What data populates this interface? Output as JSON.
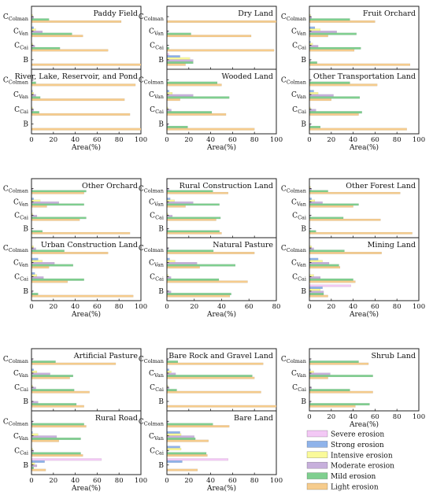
{
  "chart_data": {
    "type": "bar",
    "orientation": "horizontal",
    "categories": [
      "C_Colman",
      "C_Van",
      "C_Cai",
      "B"
    ],
    "category_labels": [
      {
        "main": "C",
        "sub": "Colman"
      },
      {
        "main": "C",
        "sub": "Van"
      },
      {
        "main": "C",
        "sub": "Cai"
      },
      {
        "main": "B",
        "sub": ""
      }
    ],
    "xlabel": "Area(%)",
    "legend": {
      "placement": "bottom-right",
      "entries": [
        {
          "name": "Severe erosion",
          "color": "#f3c8f5"
        },
        {
          "name": "Strong erosion",
          "color": "#8fb3ea"
        },
        {
          "name": "Intensive erosion",
          "color": "#fafa9a"
        },
        {
          "name": "Moderate erosion",
          "color": "#c7b0dc"
        },
        {
          "name": "Mild erosion",
          "color": "#7fcf8f"
        },
        {
          "name": "Light erosion",
          "color": "#f6cc8d"
        }
      ]
    },
    "series_order": [
      "Severe erosion",
      "Strong erosion",
      "Intensive erosion",
      "Moderate erosion",
      "Mild erosion",
      "Light erosion"
    ],
    "panels": [
      {
        "title": "Paddy Field",
        "xlim": [
          0,
          100
        ],
        "xticks": [
          0,
          20,
          40,
          60,
          80,
          100
        ],
        "values": {
          "C_Colman": [
            0,
            0,
            1,
            2,
            16,
            82
          ],
          "C_Van": [
            0,
            2,
            4,
            10,
            37,
            47
          ],
          "C_Cai": [
            0,
            0,
            1,
            3,
            26,
            70
          ],
          "B": [
            0,
            0,
            0,
            0,
            0,
            100
          ]
        }
      },
      {
        "title": "Dry Land",
        "xlim": [
          0,
          100
        ],
        "xticks": [
          0,
          20,
          40,
          60,
          80,
          100
        ],
        "values": {
          "C_Colman": [
            0,
            0,
            0,
            0,
            0,
            100
          ],
          "C_Van": [
            0,
            0,
            0,
            1,
            22,
            77
          ],
          "C_Cai": [
            0,
            0,
            0,
            0,
            2,
            98
          ],
          "B": [
            2,
            12,
            21,
            24,
            24,
            17
          ]
        }
      },
      {
        "title": "Fruit Orchard",
        "xlim": [
          0,
          100
        ],
        "xticks": [
          0,
          20,
          40,
          60,
          80,
          100
        ],
        "values": {
          "C_Colman": [
            0,
            0,
            1,
            2,
            37,
            60
          ],
          "C_Van": [
            0,
            5,
            10,
            25,
            43,
            17
          ],
          "C_Cai": [
            0,
            1,
            3,
            8,
            47,
            41
          ],
          "B": [
            0,
            0,
            0,
            1,
            7,
            92
          ]
        }
      },
      {
        "title": "River, Lake, Reservoir, and Pond",
        "xlim": [
          0,
          100
        ],
        "xticks": [
          0,
          20,
          40,
          60,
          80,
          100
        ],
        "values": {
          "C_Colman": [
            0,
            0,
            0,
            1,
            4,
            95
          ],
          "C_Van": [
            0,
            1,
            2,
            4,
            8,
            85
          ],
          "C_Cai": [
            0,
            0,
            1,
            2,
            7,
            90
          ],
          "B": [
            0,
            0,
            0,
            0,
            0,
            100
          ]
        }
      },
      {
        "title": "Wooded Land",
        "xlim": [
          0,
          100
        ],
        "xticks": [
          0,
          20,
          40,
          60,
          80,
          100
        ],
        "values": {
          "C_Colman": [
            0,
            0,
            0,
            0,
            46,
            50
          ],
          "C_Van": [
            0,
            2,
            5,
            24,
            57,
            12
          ],
          "C_Cai": [
            0,
            0,
            1,
            4,
            41,
            54
          ],
          "B": [
            0,
            0,
            0,
            1,
            19,
            80
          ]
        }
      },
      {
        "title": "Other Transportation Land",
        "xlim": [
          0,
          100
        ],
        "xticks": [
          0,
          20,
          40,
          60,
          80,
          100
        ],
        "values": {
          "C_Colman": [
            0,
            0,
            0,
            1,
            37,
            62
          ],
          "C_Van": [
            0,
            4,
            8,
            22,
            46,
            20
          ],
          "C_Cai": [
            0,
            0,
            1,
            6,
            48,
            45
          ],
          "B": [
            0,
            0,
            0,
            1,
            10,
            89
          ]
        }
      },
      {
        "title": "Other Orchard",
        "xlim": [
          0,
          100
        ],
        "xticks": [
          0,
          20,
          40,
          60,
          80,
          100
        ],
        "values": {
          "C_Colman": [
            0,
            0,
            0,
            1,
            50,
            48
          ],
          "C_Van": [
            0,
            2,
            8,
            25,
            48,
            14
          ],
          "C_Cai": [
            0,
            0,
            1,
            5,
            50,
            44
          ],
          "B": [
            0,
            0,
            0,
            0,
            10,
            90
          ]
        }
      },
      {
        "title": "Rural Construction Land",
        "xlim": [
          0,
          100
        ],
        "xticks": [
          0,
          20,
          40,
          60,
          80,
          100
        ],
        "values": {
          "C_Colman": [
            0,
            0,
            0,
            2,
            42,
            56
          ],
          "C_Van": [
            0,
            3,
            7,
            24,
            48,
            17
          ],
          "C_Cai": [
            0,
            0,
            1,
            5,
            49,
            45
          ],
          "B": [
            0,
            0,
            0,
            1,
            48,
            50
          ]
        }
      },
      {
        "title": "Other Forest Land",
        "xlim": [
          0,
          100
        ],
        "xticks": [
          0,
          20,
          40,
          60,
          80,
          100
        ],
        "values": {
          "C_Colman": [
            0,
            0,
            1,
            2,
            17,
            83
          ],
          "C_Van": [
            0,
            2,
            5,
            12,
            45,
            40
          ],
          "C_Cai": [
            0,
            0,
            0,
            1,
            31,
            65
          ],
          "B": [
            0,
            0,
            0,
            0,
            6,
            94
          ]
        }
      },
      {
        "title": "Urban Construction Land",
        "xlim": [
          0,
          100
        ],
        "xticks": [
          0,
          20,
          40,
          60,
          80,
          100
        ],
        "values": {
          "C_Colman": [
            0,
            0,
            2,
            4,
            30,
            70
          ],
          "C_Van": [
            0,
            6,
            10,
            21,
            38,
            16
          ],
          "C_Cai": [
            0,
            3,
            5,
            11,
            48,
            33
          ],
          "B": [
            0,
            0,
            0,
            1,
            6,
            93
          ]
        }
      },
      {
        "title": "Natural Pasture",
        "xlim": [
          0,
          80
        ],
        "xticks": [
          0,
          20,
          40,
          60,
          80
        ],
        "values": {
          "C_Colman": [
            0,
            0,
            0,
            1,
            34,
            64
          ],
          "C_Van": [
            0,
            2,
            6,
            22,
            50,
            24
          ],
          "C_Cai": [
            0,
            0,
            1,
            3,
            38,
            59
          ],
          "B": [
            0,
            0,
            0,
            3,
            47,
            46
          ]
        }
      },
      {
        "title": "Mining Land",
        "xlim": [
          0,
          100
        ],
        "xticks": [
          0,
          20,
          40,
          60,
          80,
          100
        ],
        "values": {
          "C_Colman": [
            0,
            0,
            2,
            4,
            32,
            66
          ],
          "C_Van": [
            0,
            8,
            12,
            18,
            27,
            28
          ],
          "C_Cai": [
            0,
            0,
            4,
            10,
            40,
            42
          ],
          "B": [
            38,
            12,
            10,
            13,
            13,
            17
          ]
        }
      },
      {
        "title": "Artificial Pasture",
        "xlim": [
          0,
          100
        ],
        "xticks": [
          0,
          20,
          40,
          60,
          80,
          100
        ],
        "values": {
          "C_Colman": [
            0,
            0,
            0,
            1,
            22,
            77
          ],
          "C_Van": [
            0,
            2,
            5,
            17,
            38,
            35
          ],
          "C_Cai": [
            0,
            0,
            1,
            4,
            39,
            53
          ],
          "B": [
            0,
            0,
            0,
            6,
            41,
            48
          ]
        }
      },
      {
        "title": "Bare Rock and Gravel Land",
        "xlim": [
          0,
          100
        ],
        "xticks": [
          0,
          20,
          40,
          60,
          80,
          100
        ],
        "values": {
          "C_Colman": [
            0,
            0,
            0,
            1,
            10,
            88
          ],
          "C_Van": [
            0,
            2,
            4,
            8,
            78,
            80
          ],
          "C_Cai": [
            0,
            0,
            1,
            2,
            9,
            86
          ],
          "B": [
            0,
            0,
            0,
            0,
            0,
            100
          ]
        }
      },
      {
        "title": "Shrub Land",
        "xlim": [
          0,
          100
        ],
        "xticks": [
          0,
          20,
          40,
          60,
          80,
          100
        ],
        "values": {
          "C_Colman": [
            0,
            0,
            0,
            1,
            45,
            54
          ],
          "C_Van": [
            0,
            1,
            4,
            19,
            58,
            17
          ],
          "C_Cai": [
            0,
            0,
            0,
            2,
            37,
            58
          ],
          "B": [
            0,
            0,
            0,
            1,
            55,
            42
          ]
        }
      },
      {
        "title": "Rural Road",
        "xlim": [
          0,
          100
        ],
        "xticks": [
          0,
          20,
          40,
          60,
          80,
          100
        ],
        "values": {
          "C_Colman": [
            0,
            0,
            0,
            1,
            48,
            50
          ],
          "C_Van": [
            0,
            1,
            6,
            23,
            45,
            25
          ],
          "C_Cai": [
            0,
            0,
            1,
            2,
            45,
            47
          ],
          "B": [
            64,
            12,
            3,
            5,
            2,
            13
          ]
        }
      },
      {
        "title": "Bare Land",
        "xlim": [
          0,
          100
        ],
        "xticks": [
          0,
          20,
          40,
          60,
          80,
          100
        ],
        "values": {
          "C_Colman": [
            0,
            0,
            0,
            1,
            42,
            57
          ],
          "C_Van": [
            0,
            12,
            13,
            25,
            26,
            38
          ],
          "C_Cai": [
            0,
            12,
            13,
            1,
            36,
            37
          ],
          "B": [
            56,
            14,
            0,
            0,
            0,
            28
          ]
        }
      }
    ]
  }
}
